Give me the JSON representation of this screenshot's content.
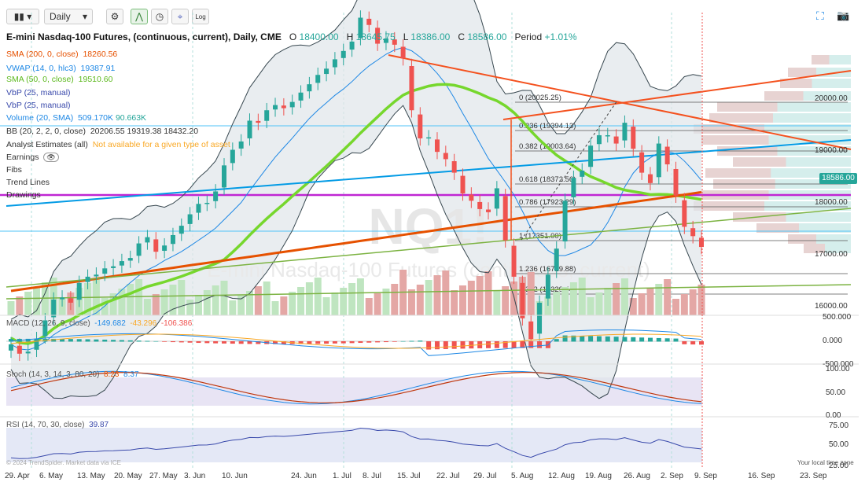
{
  "toolbar": {
    "interval": "Daily",
    "log_label": "Log"
  },
  "header": {
    "title": "E-mini Nasdaq-100 Futures, (continuous, current), Daily, CME",
    "open_label": "O",
    "open": "18400.00",
    "high_label": "H",
    "high": "18645.75",
    "low_label": "L",
    "low": "18386.00",
    "close_label": "C",
    "close": "18586.00",
    "period_label": "Period",
    "period": "+1.01%"
  },
  "legend": {
    "sma200": {
      "label": "SMA (200, 0, close)",
      "value": "18260.56",
      "color": "#e65100"
    },
    "vwap": {
      "label": "VWAP (14, 0, hlc3)",
      "value": "19387.91",
      "color": "#1e88e5"
    },
    "sma50": {
      "label": "SMA (50, 0, close)",
      "value": "19510.60",
      "color": "#76d72d"
    },
    "vbp1": {
      "label": "VbP (25, manual)"
    },
    "vbp2": {
      "label": "VbP (25, manual)"
    },
    "volume": {
      "label": "Volume (20, SMA)",
      "value1": "509.170K",
      "value2": "90.663K"
    },
    "bb": {
      "label": "BB (20, 2, 2, 0, close)",
      "value1": "20206.55",
      "value2": "19319.38",
      "value3": "18432.20"
    },
    "analyst": {
      "label": "Analyst Estimates (all)",
      "value": "Not available for a given type of asset"
    },
    "earnings": {
      "label": "Earnings"
    },
    "fibs": {
      "label": "Fibs"
    },
    "trendlines": {
      "label": "Trend Lines"
    },
    "drawings": {
      "label": "Drawings"
    }
  },
  "watermark": {
    "symbol": "NQ1!",
    "name": "E-mini Nasdaq-100 Futures (continuous, current)"
  },
  "fib_levels": [
    {
      "label": "0 (20025.25)"
    },
    {
      "label": "0.236 (19394.13)"
    },
    {
      "label": "0.382 (19003.64)"
    },
    {
      "label": "0.618 (18372.56)"
    },
    {
      "label": "0.786 (17923.29)"
    },
    {
      "label": "1 (17351.00)"
    },
    {
      "label": "1.236 (16719.88)"
    },
    {
      "label": "1.382 (16329.44)"
    }
  ],
  "price_axis": [
    "20000.00",
    "19000.00",
    "18000.00",
    "17000.00",
    "16000.00"
  ],
  "last_price": "18586.00",
  "macd": {
    "label": "MACD (12, 26, 9, close)",
    "v1": "-149.682",
    "v2": "-43.296",
    "v3": "-106.386",
    "axis": [
      "500.000",
      "0.000",
      "-500.000"
    ]
  },
  "stoch": {
    "label": "Stoch (14, 3, 14, 3, 80, 20)",
    "v1": "8.23",
    "v2": "8.37",
    "axis": [
      "100.00",
      "50.00",
      "0.00"
    ]
  },
  "rsi": {
    "label": "RSI (14, 70, 30, close)",
    "value": "39.87",
    "axis": [
      "75.00",
      "50.00",
      "25.00"
    ]
  },
  "copyright": "© 2024 TrendSpider. Market data via ICE",
  "local_time": "Your local time zone",
  "x_axis": [
    "29. Apr",
    "6. May",
    "13. May",
    "20. May",
    "27. May",
    "3. Jun",
    "10. Jun",
    "24. Jun",
    "1. Jul",
    "8. Jul",
    "15. Jul",
    "22. Jul",
    "29. Jul",
    "5. Aug",
    "12. Aug",
    "19. Aug",
    "26. Aug",
    "2. Sep",
    "9. Sep",
    "16. Sep",
    "23. Sep"
  ],
  "colors": {
    "up": "#26a69a",
    "down": "#ef5350",
    "sma200": "#e65100",
    "sma50": "#76d72d",
    "bb": "#37474f",
    "vwap": "#1e88e5"
  },
  "chart_data": {
    "type": "candlestick",
    "closes": [
      17650,
      17560,
      17580,
      17700,
      17880,
      18080,
      18100,
      18050,
      18240,
      18300,
      18320,
      18380,
      18400,
      18450,
      18480,
      18620,
      18680,
      18540,
      18600,
      18700,
      18790,
      18900,
      19000,
      19010,
      19120,
      19370,
      19520,
      19600,
      19800,
      19780,
      19900,
      19950,
      19920,
      19980,
      20070,
      20150,
      20240,
      20300,
      20390,
      20470,
      20560,
      20790,
      20720,
      20540,
      20590,
      20530,
      20400,
      19900,
      19630,
      19640,
      19500,
      19430,
      19300,
      19100,
      19030,
      18950,
      18920,
      19150,
      18650,
      18300,
      17900,
      17700,
      18050,
      18320,
      18570,
      19030,
      19250,
      19320,
      19560,
      19660,
      19660,
      19580,
      19780,
      19530,
      19300,
      19200,
      19580,
      19380,
      19080,
      18780,
      18690,
      18586
    ]
  }
}
